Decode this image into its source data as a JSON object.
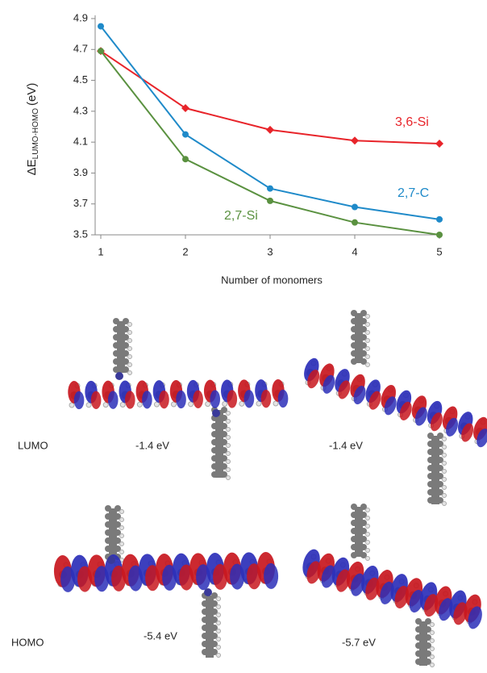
{
  "chart_data": {
    "type": "line",
    "y_label": {
      "symbol": "ΔE",
      "subscript": "LUMO-HOMO",
      "unit": "(eV)"
    },
    "x_label": "Number of monomers",
    "x": [
      1,
      2,
      3,
      4,
      5
    ],
    "xlim": [
      1,
      5
    ],
    "xticks": [
      1,
      2,
      3,
      4,
      5
    ],
    "ylim": [
      3.5,
      4.9
    ],
    "yticks": [
      3.5,
      3.7,
      3.9,
      4.1,
      4.3,
      4.5,
      4.7,
      4.9
    ],
    "series": [
      {
        "name": "3,6-Si",
        "color": "#e8242a",
        "marker": "diamond",
        "values": [
          4.69,
          4.32,
          4.18,
          4.11,
          4.09
        ]
      },
      {
        "name": "2,7-C",
        "color": "#1f8ac9",
        "marker": "circle",
        "values": [
          4.85,
          4.15,
          3.8,
          3.68,
          3.6
        ]
      },
      {
        "name": "2,7-Si",
        "color": "#5a9140",
        "marker": "circle",
        "values": [
          4.69,
          3.99,
          3.72,
          3.58,
          3.5
        ]
      }
    ]
  },
  "orbitals": {
    "rows": [
      {
        "label": "LUMO",
        "energies": [
          "-1.4 eV",
          "-1.4 eV"
        ]
      },
      {
        "label": "HOMO",
        "energies": [
          "-5.4 eV",
          "-5.7 eV"
        ]
      }
    ]
  }
}
